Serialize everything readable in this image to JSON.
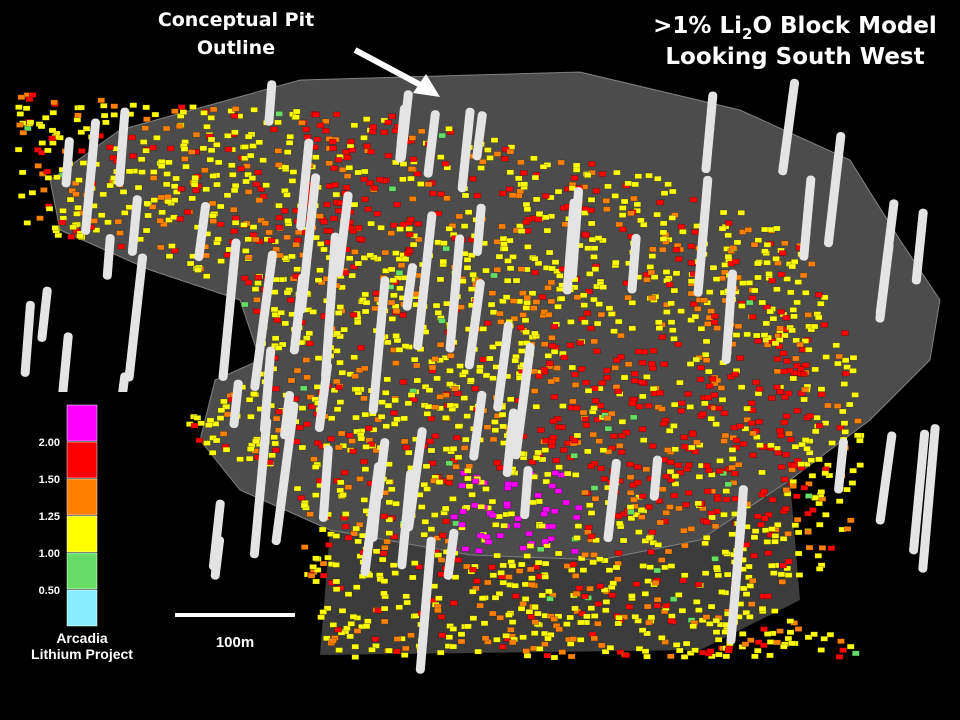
{
  "annotation": {
    "lines": [
      "Conceptual Pit",
      "Outline"
    ]
  },
  "title": {
    "line1": {
      "before": ">1% Li",
      "sub": "2",
      "after": "O Block Model"
    },
    "line2": "Looking South West"
  },
  "legend": {
    "labels": [
      "2.00",
      "1.50",
      "1.25",
      "1.00",
      "0.50"
    ],
    "colors": [
      "#ff00ff",
      "#ff0000",
      "#ff8000",
      "#ffff00",
      "#66dd66",
      "#88eeff"
    ],
    "caption": [
      "Arcadia",
      "Lithium Project"
    ]
  },
  "scale_bar": {
    "label": "100m"
  }
}
